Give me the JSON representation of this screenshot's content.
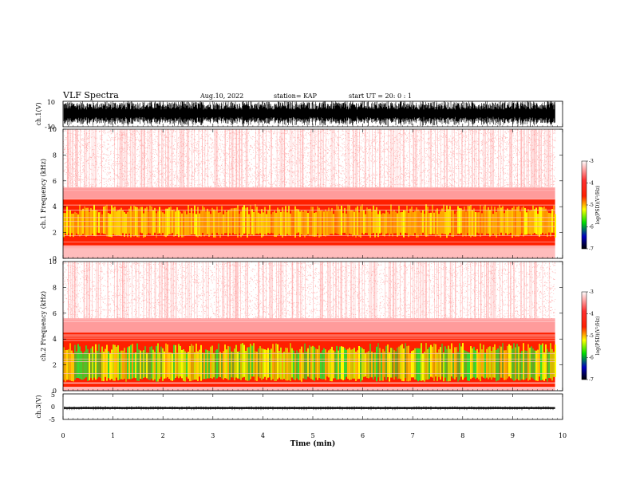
{
  "header": {
    "title": "VLF Spectra",
    "date": "Aug.10, 2022",
    "station": "station= KAP",
    "start": "start  UT =   20: 0  : 1"
  },
  "chart_data": [
    {
      "type": "line",
      "panel": "ch1-waveform",
      "ylabel": "ch.1(V)",
      "yticks": [
        "10",
        "-10"
      ],
      "ylim": [
        -10,
        10
      ],
      "xlim": [
        0,
        10
      ],
      "data_end_min": 9.85,
      "description_of_signal": "dense saturated noise spanning ±10 V"
    },
    {
      "type": "heatmap",
      "panel": "ch1-spectrogram",
      "ylabel": "ch.1 Frequency (kHz)",
      "yticks": [
        "0",
        "2",
        "4",
        "6",
        "8",
        "10"
      ],
      "ylim": [
        0,
        10
      ],
      "xlim": [
        0,
        10
      ],
      "data_end_min": 9.85,
      "band_khz": {
        "strong_low": 1.0,
        "strong_high": 4.6,
        "core_low": 1.8,
        "core_high": 3.8,
        "weak_top": 5.5
      },
      "core_level": "yellow",
      "colorbar": {
        "label": "log(PSD)(V²/Hz)",
        "ticks": [
          "-3",
          "-4",
          "-5",
          "-6",
          "-7"
        ],
        "range": [
          -7,
          -3
        ],
        "colors": [
          "#ffffff",
          "#ff0000",
          "#ffff00",
          "#00e000",
          "#0000c0",
          "#000000"
        ]
      }
    },
    {
      "type": "heatmap",
      "panel": "ch2-spectrogram",
      "ylabel": "ch.2 Frequency (kHz)",
      "yticks": [
        "0",
        "2",
        "4",
        "6",
        "8",
        "10"
      ],
      "ylim": [
        0,
        10
      ],
      "xlim": [
        0,
        10
      ],
      "data_end_min": 9.85,
      "band_khz": {
        "strong_low": 0.3,
        "strong_high": 4.5,
        "core_low": 0.9,
        "core_high": 3.3,
        "weak_top": 5.6
      },
      "core_level": "green",
      "colorbar": {
        "label": "log(PSD)(V²/Hz)",
        "ticks": [
          "-3",
          "-4",
          "-5",
          "-6",
          "-7"
        ],
        "range": [
          -7,
          -3
        ],
        "colors": [
          "#ffffff",
          "#ff0000",
          "#ffff00",
          "#00e000",
          "#0000c0",
          "#000000"
        ]
      }
    },
    {
      "type": "line",
      "panel": "ch3-waveform",
      "ylabel": "ch.3(V)",
      "yticks": [
        "5",
        "0",
        "-5"
      ],
      "ylim": [
        -5,
        5
      ],
      "xlim": [
        0,
        10
      ],
      "data_end_min": 9.85,
      "level_range_v": [
        -0.9,
        -0.2
      ]
    }
  ],
  "time_axis": {
    "label": "Time  (min)",
    "ticks": [
      "0",
      "1",
      "2",
      "3",
      "4",
      "5",
      "6",
      "7",
      "8",
      "9",
      "10"
    ]
  }
}
